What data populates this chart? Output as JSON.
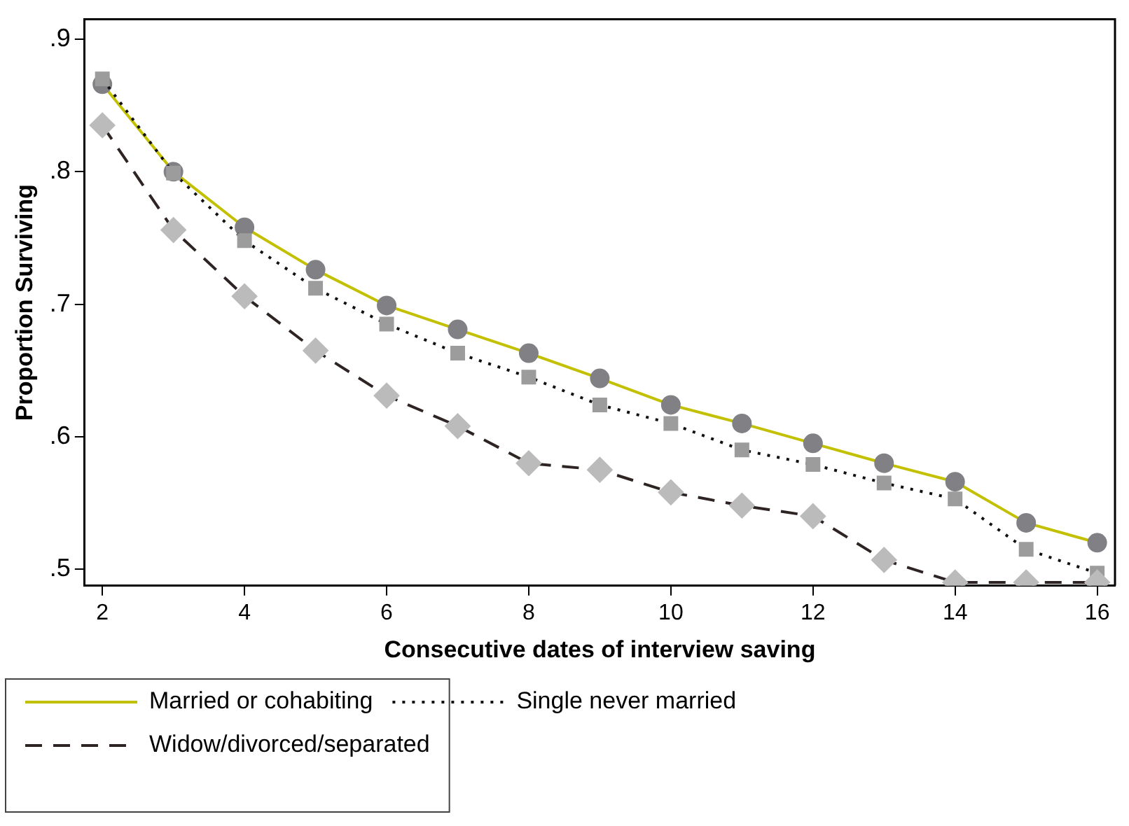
{
  "chart_data": {
    "type": "line",
    "xlabel": "Consecutive dates of interview saving",
    "ylabel": "Proportion Surviving",
    "x": [
      2,
      3,
      4,
      5,
      6,
      7,
      8,
      9,
      10,
      11,
      12,
      13,
      14,
      15,
      16
    ],
    "xlim": [
      1.75,
      16.25
    ],
    "xticks": [
      2,
      4,
      6,
      8,
      10,
      12,
      14,
      16
    ],
    "ylim": [
      0.4875,
      0.915
    ],
    "yticks": [
      {
        "value": 0.5,
        "label": ".5"
      },
      {
        "value": 0.6,
        "label": ".6"
      },
      {
        "value": 0.7,
        "label": ".7"
      },
      {
        "value": 0.8,
        "label": ".8"
      },
      {
        "value": 0.9,
        "label": ".9"
      }
    ],
    "grid": false,
    "legend": "bottom",
    "series": [
      {
        "name": "Married or cohabiting",
        "color": "#c2c000",
        "marker": "circle",
        "line_style": "solid",
        "values": [
          0.866,
          0.8,
          0.758,
          0.726,
          0.699,
          0.681,
          0.663,
          0.644,
          0.624,
          0.61,
          0.595,
          0.58,
          0.566,
          0.535,
          0.52
        ]
      },
      {
        "name": "Single never married",
        "color": "#111111",
        "marker": "square",
        "line_style": "dotted",
        "values": [
          0.87,
          0.799,
          0.748,
          0.712,
          0.685,
          0.663,
          0.645,
          0.624,
          0.61,
          0.59,
          0.579,
          0.565,
          0.553,
          0.515,
          0.497
        ]
      },
      {
        "name": "Widow/divorced/separated",
        "color": "#2e2424",
        "marker": "diamond",
        "line_style": "dashed",
        "values": [
          0.835,
          0.756,
          0.706,
          0.665,
          0.631,
          0.608,
          0.58,
          0.575,
          0.558,
          0.548,
          0.54,
          0.507,
          0.49,
          0.49,
          0.49
        ]
      }
    ]
  }
}
